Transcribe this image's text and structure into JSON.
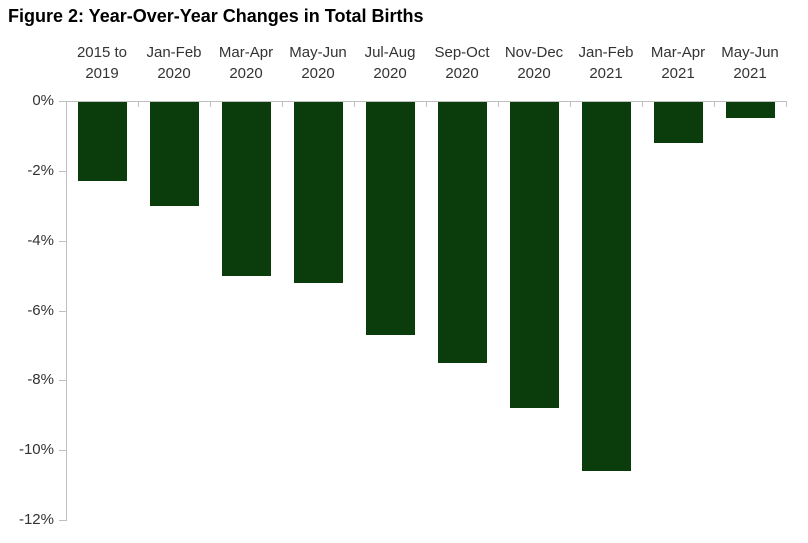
{
  "title": "Figure 2: Year-Over-Year Changes in Total Births",
  "chart_data": {
    "type": "bar",
    "title": "Figure 2: Year-Over-Year Changes in Total Births",
    "categories": [
      "2015 to\n2019",
      "Jan-Feb\n2020",
      "Mar-Apr\n2020",
      "May-Jun\n2020",
      "Jul-Aug\n2020",
      "Sep-Oct\n2020",
      "Nov-Dec\n2020",
      "Jan-Feb\n2021",
      "Mar-Apr\n2021",
      "May-Jun\n2021"
    ],
    "values": [
      -2.3,
      -3.0,
      -5.0,
      -5.2,
      -6.7,
      -7.5,
      -8.8,
      -10.6,
      -1.2,
      -0.5
    ],
    "unit": "%",
    "xlabel": "",
    "ylabel": "",
    "ylim": [
      -12,
      0
    ],
    "yticks": [
      0,
      -2,
      -4,
      -6,
      -8,
      -10,
      -12
    ],
    "ytick_labels": [
      "0%",
      "-2%",
      "-4%",
      "-6%",
      "-8%",
      "-10%",
      "-12%"
    ],
    "grid": false,
    "legend": false,
    "category_label_position": "top",
    "bar_color": "#0b3d0c",
    "axis_color": "#bfbfbf",
    "label_color": "#333333",
    "title_color": "#000000",
    "background_color": "#ffffff"
  }
}
